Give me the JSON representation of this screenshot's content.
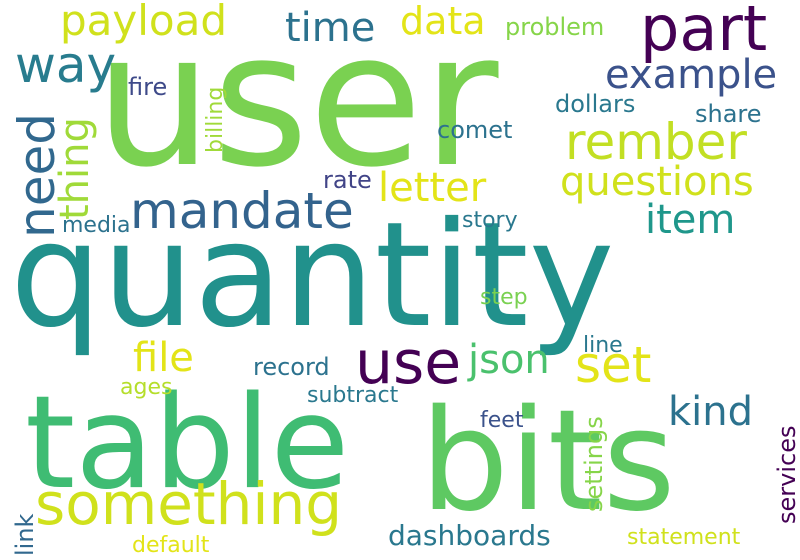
{
  "words": [
    {
      "text": "user",
      "color": "#7ad151"
    },
    {
      "text": "quantity",
      "color": "#21918c"
    },
    {
      "text": "bits",
      "color": "#5ec962"
    },
    {
      "text": "table",
      "color": "#3fbc73"
    },
    {
      "text": "part",
      "color": "#440154"
    },
    {
      "text": "something",
      "color": "#d0e11c"
    },
    {
      "text": "mandate",
      "color": "#33638d"
    },
    {
      "text": "rember",
      "color": "#c2df23"
    },
    {
      "text": "use",
      "color": "#440154"
    },
    {
      "text": "payload",
      "color": "#d0e11c"
    },
    {
      "text": "set",
      "color": "#e3e418"
    },
    {
      "text": "data",
      "color": "#e3e418"
    },
    {
      "text": "way",
      "color": "#287c8e"
    },
    {
      "text": "time",
      "color": "#2c728e"
    },
    {
      "text": "example",
      "color": "#3b528b"
    },
    {
      "text": "questions",
      "color": "#d0e11c"
    },
    {
      "text": "need",
      "color": "#31688e"
    },
    {
      "text": "thing",
      "color": "#a0da39"
    },
    {
      "text": "letter",
      "color": "#e3e418"
    },
    {
      "text": "item",
      "color": "#1f978b"
    },
    {
      "text": "json",
      "color": "#4ac16d"
    },
    {
      "text": "file",
      "color": "#e3e418"
    },
    {
      "text": "kind",
      "color": "#2c728e"
    },
    {
      "text": "dashboards",
      "color": "#2a788e"
    },
    {
      "text": "problem",
      "color": "#86d549"
    },
    {
      "text": "fire",
      "color": "#3e4a89"
    },
    {
      "text": "dollars",
      "color": "#2a788e"
    },
    {
      "text": "share",
      "color": "#2c728e"
    },
    {
      "text": "comet",
      "color": "#2c728e"
    },
    {
      "text": "billing",
      "color": "#a0da39"
    },
    {
      "text": "rate",
      "color": "#414487"
    },
    {
      "text": "media",
      "color": "#2c728e"
    },
    {
      "text": "story",
      "color": "#2a788e"
    },
    {
      "text": "step",
      "color": "#7ad151"
    },
    {
      "text": "line",
      "color": "#2a788e"
    },
    {
      "text": "record",
      "color": "#2c728e"
    },
    {
      "text": "ages",
      "color": "#b5de2b"
    },
    {
      "text": "subtract",
      "color": "#2a788e"
    },
    {
      "text": "feet",
      "color": "#3b528b"
    },
    {
      "text": "settings",
      "color": "#86d549"
    },
    {
      "text": "services",
      "color": "#440154"
    },
    {
      "text": "link",
      "color": "#31688e"
    },
    {
      "text": "default",
      "color": "#e3e418"
    },
    {
      "text": "statement",
      "color": "#d0e11c"
    }
  ]
}
